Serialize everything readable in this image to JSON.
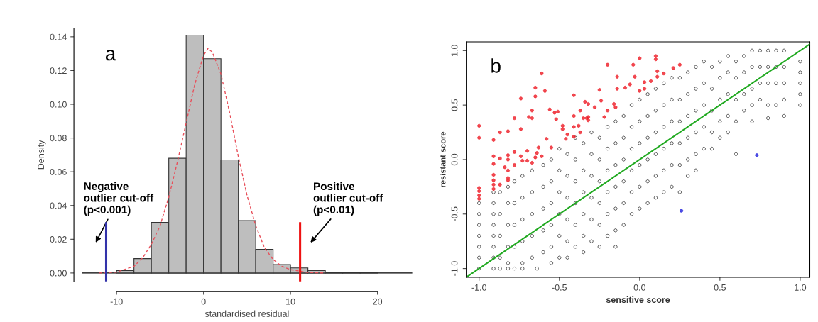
{
  "chart_data": [
    {
      "type": "histogram",
      "xlabel": "standardised residual",
      "ylabel": "Density",
      "annotations": [
        "a"
      ],
      "bins": [
        -10,
        -8,
        -6,
        -4,
        -2,
        0,
        2,
        4,
        6,
        8,
        10,
        12,
        14,
        16,
        18,
        20
      ],
      "series": [
        {
          "type": "histogram",
          "color": "#bebebe",
          "values": [
            0.0015,
            0.0085,
            0.03,
            0.068,
            0.141,
            0.127,
            0.067,
            0.031,
            0.014,
            0.005,
            0.003,
            0.0015,
            0.0005,
            0.0002,
            0.0002
          ]
        },
        {
          "type": "line",
          "color": "#e8505b",
          "x": [
            -12,
            -10,
            -8,
            -7,
            -6,
            -5,
            -4,
            -3,
            -2,
            -1,
            0,
            0.5,
            1,
            2,
            3,
            4,
            5,
            6,
            7,
            8,
            9,
            10,
            12,
            14
          ],
          "values": [
            0,
            0.0005,
            0.004,
            0.009,
            0.017,
            0.028,
            0.045,
            0.066,
            0.089,
            0.112,
            0.129,
            0.133,
            0.131,
            0.118,
            0.095,
            0.069,
            0.046,
            0.028,
            0.015,
            0.008,
            0.004,
            0.002,
            0.0003,
            0
          ]
        }
      ],
      "line_style": "dashed",
      "xlim": [
        -14,
        24
      ],
      "ylim": [
        -0.005,
        0.145
      ],
      "xticks": [
        -10,
        0,
        10,
        20
      ],
      "yticks": [
        {
          "value": 0,
          "label": "0.00"
        },
        {
          "value": 0.02,
          "label": "0.02"
        },
        {
          "value": 0.04,
          "label": "0.04"
        },
        {
          "value": 0.06,
          "label": "0.06"
        },
        {
          "value": 0.08,
          "label": "0.08"
        },
        {
          "value": 0.1,
          "label": "0.10"
        },
        {
          "value": 0.12,
          "label": "0.12"
        },
        {
          "value": 0.14,
          "label": "0.14"
        }
      ],
      "ref_lines": [
        {
          "axis": "y",
          "value": 0,
          "label": null,
          "color": "#000000"
        },
        {
          "axis": "x",
          "value": -11.2,
          "label": "Negative\noutlier cut-off\n(p<0.001)",
          "color": "#3333aa"
        },
        {
          "axis": "x",
          "value": 11.1,
          "label": "Positive\noutlier cut-off\n(p<0.01)",
          "color": "#ee1111"
        }
      ],
      "grid": false,
      "legend": false
    },
    {
      "type": "scatter",
      "xlabel": "sensitive score",
      "ylabel": "resistant score",
      "annotations": [
        "b"
      ],
      "series": [
        {
          "type": "scatter",
          "color": "#000000",
          "marker": "circle",
          "x": [
            -1.0,
            -1.0,
            -1.0,
            -1.0,
            -1.0,
            -1.0,
            -1.0,
            -0.91,
            -0.91,
            -0.91,
            -0.91,
            -0.91,
            -0.91,
            -0.91,
            -0.91,
            -0.87,
            -0.87,
            -0.87,
            -0.87,
            -0.87,
            -0.82,
            -0.82,
            -0.82,
            -0.82,
            -0.82,
            -0.82,
            -0.78,
            -0.78,
            -0.78,
            -0.78,
            -0.78,
            -0.73,
            -0.73,
            -0.73,
            -0.73,
            -0.73,
            -0.73,
            -0.67,
            -0.67,
            -0.67,
            -0.67,
            -0.67,
            -0.64,
            -0.6,
            -0.6,
            -0.6,
            -0.6,
            -0.6,
            -0.55,
            -0.55,
            -0.55,
            -0.55,
            -0.55,
            -0.55,
            -0.5,
            -0.5,
            -0.5,
            -0.5,
            -0.5,
            -0.5,
            -0.45,
            -0.45,
            -0.45,
            -0.45,
            -0.45,
            -0.45,
            -0.4,
            -0.4,
            -0.4,
            -0.4,
            -0.4,
            -0.4,
            -0.35,
            -0.35,
            -0.35,
            -0.35,
            -0.35,
            -0.35,
            -0.3,
            -0.3,
            -0.3,
            -0.3,
            -0.3,
            -0.3,
            -0.25,
            -0.25,
            -0.25,
            -0.25,
            -0.25,
            -0.25,
            -0.2,
            -0.2,
            -0.2,
            -0.2,
            -0.2,
            -0.2,
            -0.15,
            -0.15,
            -0.15,
            -0.15,
            -0.15,
            -0.15,
            -0.15,
            -0.1,
            -0.1,
            -0.1,
            -0.1,
            -0.1,
            -0.1,
            -0.05,
            -0.05,
            -0.05,
            -0.05,
            -0.05,
            -0.05,
            0.0,
            0.0,
            0.0,
            0.0,
            0.0,
            0.0,
            0.05,
            0.05,
            0.05,
            0.05,
            0.05,
            0.05,
            0.1,
            0.1,
            0.1,
            0.1,
            0.1,
            0.1,
            0.15,
            0.15,
            0.15,
            0.15,
            0.15,
            0.15,
            0.2,
            0.2,
            0.2,
            0.2,
            0.2,
            0.2,
            0.25,
            0.25,
            0.25,
            0.25,
            0.25,
            0.25,
            0.3,
            0.3,
            0.3,
            0.3,
            0.3,
            0.3,
            0.35,
            0.35,
            0.35,
            0.35,
            0.35,
            0.35,
            0.4,
            0.4,
            0.4,
            0.4,
            0.4,
            0.45,
            0.45,
            0.45,
            0.45,
            0.45,
            0.5,
            0.5,
            0.5,
            0.5,
            0.5,
            0.55,
            0.55,
            0.55,
            0.55,
            0.55,
            0.6,
            0.6,
            0.6,
            0.6,
            0.6,
            0.65,
            0.65,
            0.65,
            0.65,
            0.7,
            0.7,
            0.7,
            0.7,
            0.7,
            0.75,
            0.75,
            0.75,
            0.75,
            0.8,
            0.8,
            0.8,
            0.8,
            0.8,
            0.85,
            0.85,
            0.85,
            0.85,
            0.9,
            0.9,
            0.9,
            0.9,
            0.9,
            1.0,
            1.0,
            1.0,
            1.0,
            1.0
          ],
          "values": [
            -0.4,
            -0.5,
            -0.6,
            -0.7,
            -0.8,
            -0.9,
            -1.0,
            -0.3,
            -0.4,
            -0.5,
            -0.6,
            -0.7,
            -0.8,
            -0.9,
            -1.0,
            -0.3,
            -0.5,
            -0.7,
            -0.9,
            -1.0,
            -0.25,
            -0.4,
            -0.6,
            -0.8,
            -0.95,
            -1.0,
            -0.2,
            -0.4,
            -0.6,
            -0.8,
            -1.0,
            -0.15,
            -0.35,
            -0.55,
            -0.75,
            -0.95,
            -1.0,
            -0.1,
            -0.3,
            -0.5,
            -0.7,
            -0.9,
            -1.0,
            -0.05,
            -0.25,
            -0.45,
            -0.65,
            -0.85,
            0.0,
            -0.2,
            -0.4,
            -0.6,
            -0.8,
            -0.95,
            0.1,
            -0.1,
            -0.3,
            -0.5,
            -0.7,
            -0.9,
            0.05,
            -0.15,
            -0.35,
            -0.55,
            -0.75,
            -0.9,
            0.2,
            0.0,
            -0.2,
            -0.4,
            -0.6,
            -0.8,
            0.15,
            -0.1,
            -0.3,
            -0.5,
            -0.7,
            -0.85,
            0.25,
            0.05,
            -0.15,
            -0.35,
            -0.55,
            -0.75,
            0.2,
            0.0,
            -0.2,
            -0.4,
            -0.6,
            -0.8,
            0.3,
            0.1,
            -0.1,
            -0.3,
            -0.5,
            -0.7,
            0.35,
            0.15,
            -0.05,
            -0.25,
            -0.45,
            -0.65,
            -0.8,
            0.4,
            0.2,
            0.0,
            -0.2,
            -0.4,
            -0.6,
            0.5,
            0.3,
            0.1,
            -0.1,
            -0.3,
            -0.5,
            0.55,
            0.35,
            0.15,
            -0.05,
            -0.25,
            -0.45,
            0.6,
            0.4,
            0.2,
            0.0,
            -0.2,
            -0.4,
            0.65,
            0.45,
            0.25,
            0.05,
            -0.15,
            -0.35,
            0.7,
            0.5,
            0.3,
            0.1,
            -0.1,
            -0.3,
            0.75,
            0.55,
            0.35,
            0.15,
            -0.05,
            -0.25,
            0.75,
            0.55,
            0.35,
            0.15,
            -0.05,
            -0.3,
            0.8,
            0.6,
            0.4,
            0.2,
            0.0,
            -0.15,
            0.85,
            0.65,
            0.45,
            0.25,
            0.05,
            -0.1,
            0.9,
            0.7,
            0.5,
            0.3,
            0.1,
            0.85,
            0.65,
            0.45,
            0.25,
            0.1,
            0.9,
            0.75,
            0.55,
            0.35,
            0.2,
            0.95,
            0.8,
            0.6,
            0.4,
            0.25,
            0.9,
            0.75,
            0.55,
            0.35,
            0.05,
            0.95,
            0.8,
            0.6,
            0.45,
            1.0,
            0.85,
            0.65,
            0.5,
            0.35,
            1.0,
            0.85,
            0.7,
            0.55,
            1.0,
            0.85,
            0.7,
            0.5,
            0.38,
            1.0,
            0.85,
            0.7,
            0.5,
            1.0,
            0.85,
            0.7,
            0.55,
            0.4,
            0.9,
            0.8,
            0.7,
            0.6,
            0.5
          ]
        },
        {
          "type": "scatter",
          "color": "#ee1c25",
          "marker": "circle",
          "x": [
            -1.0,
            -1.0,
            -1.0,
            -1.0,
            -1.0,
            -1.0,
            -0.91,
            -0.91,
            -0.91,
            -0.91,
            -0.91,
            -0.91,
            -0.91,
            -0.87,
            -0.87,
            -0.87,
            -0.82,
            -0.82,
            -0.82,
            -0.82,
            -0.82,
            -0.82,
            -0.84,
            -0.78,
            -0.78,
            -0.78,
            -0.74,
            -0.74,
            -0.74,
            -0.73,
            -0.7,
            -0.7,
            -0.69,
            -0.67,
            -0.67,
            -0.67,
            -0.65,
            -0.65,
            -0.65,
            -0.64,
            -0.63,
            -0.61,
            -0.61,
            -0.59,
            -0.58,
            -0.56,
            -0.55,
            -0.53,
            -0.52,
            -0.51,
            -0.48,
            -0.48,
            -0.46,
            -0.45,
            -0.41,
            -0.41,
            -0.41,
            -0.41,
            -0.38,
            -0.37,
            -0.37,
            -0.35,
            -0.34,
            -0.33,
            -0.32,
            -0.32,
            -0.32,
            -0.28,
            -0.25,
            -0.24,
            -0.22,
            -0.2,
            -0.2,
            -0.16,
            -0.15,
            -0.14,
            -0.14,
            -0.09,
            -0.06,
            -0.04,
            -0.03,
            0.0,
            0.0,
            0.03,
            0.03,
            0.07,
            0.1,
            0.1,
            0.11,
            0.11,
            0.15,
            0.21,
            0.25
          ],
          "values": [
            0.31,
            0.2,
            -0.26,
            -0.29,
            -0.33,
            -0.36,
            0.18,
            0.03,
            -0.04,
            -0.14,
            -0.19,
            -0.23,
            -0.27,
            0.25,
            0.01,
            -0.23,
            0.26,
            0.04,
            0.0,
            -0.1,
            -0.17,
            -0.19,
            -0.07,
            0.38,
            0.07,
            -0.05,
            0.56,
            0.28,
            0.03,
            -0.01,
            0.08,
            -0.01,
            0.39,
            0.45,
            0.38,
            -0.03,
            0.66,
            0.58,
            0.02,
            0.06,
            0.11,
            0.79,
            0.03,
            0.63,
            0.19,
            0.46,
            0.11,
            0.43,
            0.37,
            0.44,
            0.28,
            0.31,
            0.19,
            0.23,
            0.59,
            0.4,
            0.3,
            0.21,
            0.31,
            0.45,
            0.25,
            0.38,
            0.53,
            0.38,
            0.36,
            0.51,
            0.39,
            0.48,
            0.64,
            0.54,
            0.39,
            0.45,
            0.87,
            0.51,
            0.48,
            0.76,
            0.65,
            0.66,
            0.69,
            0.87,
            0.76,
            0.63,
            0.93,
            0.65,
            0.71,
            0.72,
            0.95,
            0.92,
            0.81,
            0.76,
            0.79,
            0.84,
            0.87
          ]
        },
        {
          "type": "scatter",
          "color": "#2222dd",
          "marker": "circle",
          "x": [
            0.26,
            0.73
          ],
          "values": [
            -0.47,
            0.04
          ]
        },
        {
          "type": "line",
          "color": "#22aa22",
          "x": [
            -1.08,
            1.06
          ],
          "values": [
            -1.08,
            1.06
          ]
        }
      ],
      "xlim": [
        -1.08,
        1.06
      ],
      "ylim": [
        -1.08,
        1.08
      ],
      "xticks": [
        {
          "value": -1,
          "label": "-1.0"
        },
        {
          "value": -0.5,
          "label": "-0.5"
        },
        {
          "value": 0,
          "label": "0.0"
        },
        {
          "value": 0.5,
          "label": "0.5"
        },
        {
          "value": 1,
          "label": "1.0"
        }
      ],
      "yticks": [
        {
          "value": -1,
          "label": "-1.0"
        },
        {
          "value": -0.5,
          "label": "-0.5"
        },
        {
          "value": 0,
          "label": "0.0"
        },
        {
          "value": 0.5,
          "label": "0.5"
        },
        {
          "value": 1,
          "label": "1.0"
        }
      ],
      "grid": false,
      "legend": false
    }
  ]
}
